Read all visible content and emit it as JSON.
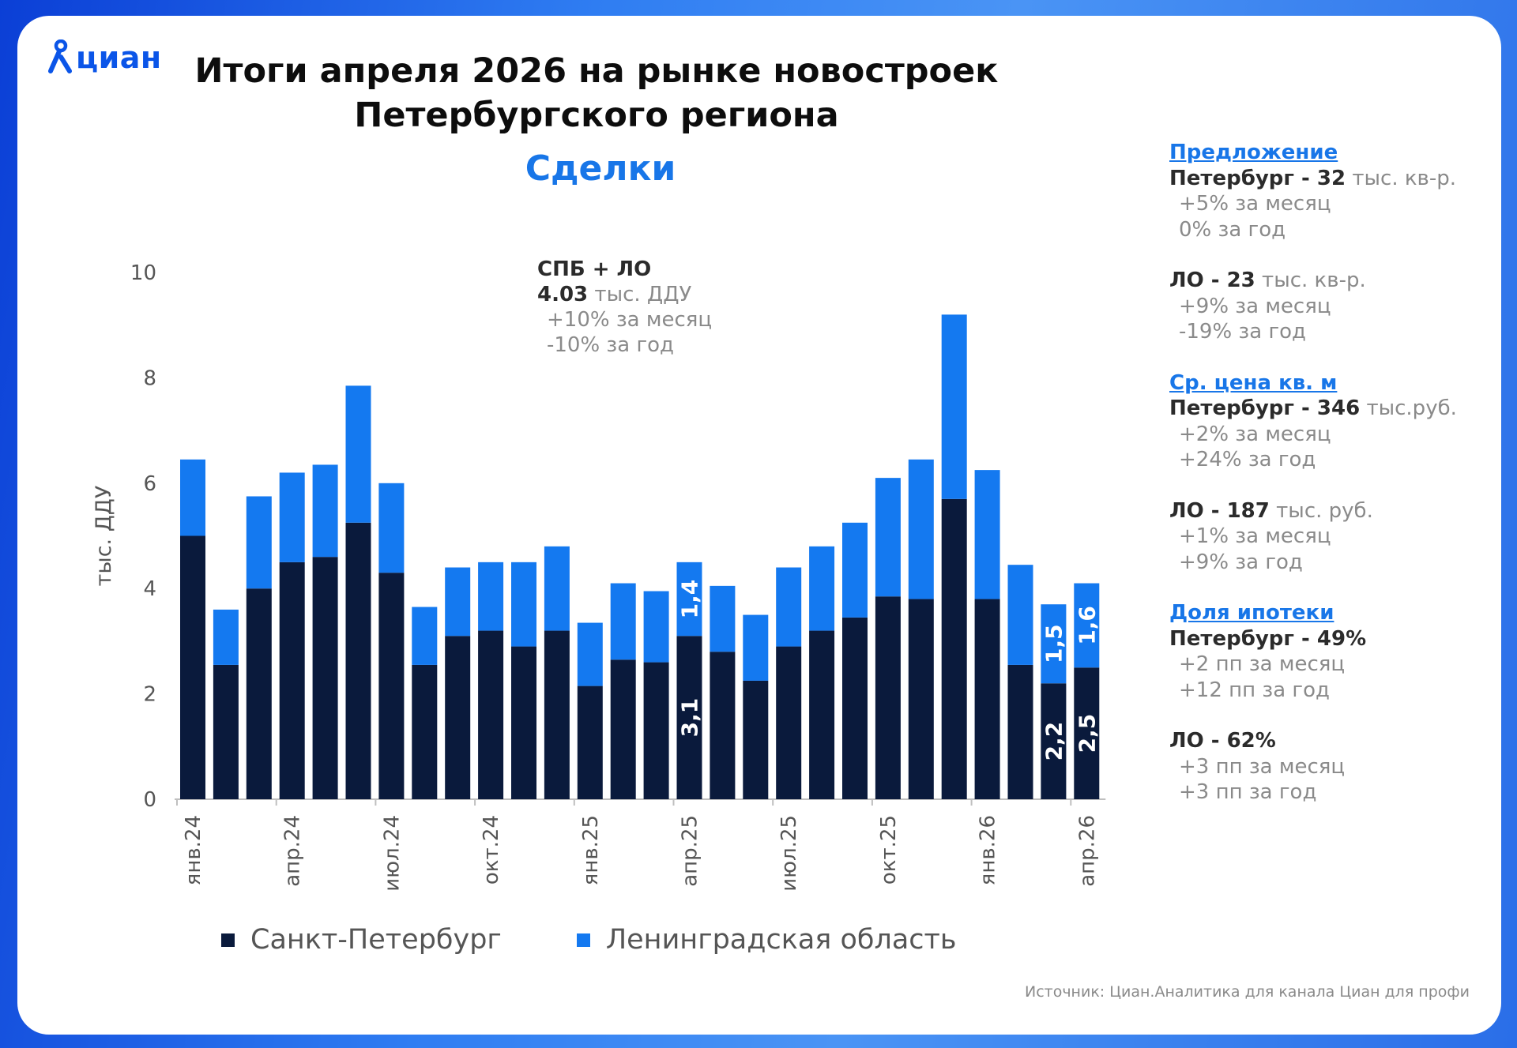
{
  "brand": {
    "logo_text": "циан"
  },
  "title_line1": "Итоги апреля 2026 на рынке новостроек",
  "title_line2": "Петербургского региона",
  "subtitle": "Сделки",
  "annotation": {
    "line1": "СПБ + ЛО",
    "line2_bold": "4.03",
    "line2_unit": " тыс. ДДУ",
    "line3": "+10% за месяц",
    "line4": "-10% за год"
  },
  "sidebar": {
    "offer_header": "Предложение",
    "offer_spb_bold": "Петербург - 32",
    "offer_spb_unit": " тыс. кв-р.",
    "offer_spb_m": "+5% за месяц",
    "offer_spb_y": "0% за год",
    "offer_lo_bold": "ЛО - 23",
    "offer_lo_unit": " тыс. кв-р.",
    "offer_lo_m": "+9% за месяц",
    "offer_lo_y": "-19% за год",
    "price_header": "Ср. цена кв. м",
    "price_spb_bold": "Петербург - 346",
    "price_spb_unit": " тыс.руб.",
    "price_spb_m": "+2% за месяц",
    "price_spb_y": "+24% за год",
    "price_lo_bold": "ЛО - 187",
    "price_lo_unit": " тыс. руб.",
    "price_lo_m": "+1% за месяц",
    "price_lo_y": "+9% за год",
    "mortgage_header": "Доля ипотеки",
    "mortgage_spb_bold": "Петербург - 49%",
    "mortgage_spb_m": "+2 пп за месяц",
    "mortgage_spb_y": "+12 пп за год",
    "mortgage_lo_bold": "ЛО - 62%",
    "mortgage_lo_m": "+3 пп за месяц",
    "mortgage_lo_y": "+3 пп за год"
  },
  "source": "Источник: Циан.Аналитика для канала Циан для профи",
  "colors": {
    "spb": "#0a1a3c",
    "lo": "#1479f0",
    "accent": "#1876e8",
    "brand": "#0b55e8"
  },
  "chart_data": {
    "type": "bar",
    "stacked": true,
    "ylabel": "тыс. ДДУ",
    "ylim": [
      0,
      10
    ],
    "yticks": [
      "0",
      "2",
      "4",
      "6",
      "8",
      "10"
    ],
    "categories": [
      "янв.24",
      "фев.24",
      "мар.24",
      "апр.24",
      "май.24",
      "июн.24",
      "июл.24",
      "авг.24",
      "сен.24",
      "окт.24",
      "ноя.24",
      "дек.24",
      "янв.25",
      "фев.25",
      "мар.25",
      "апр.25",
      "май.25",
      "июн.25",
      "июл.25",
      "авг.25",
      "сен.25",
      "окт.25",
      "ноя.25",
      "дек.25",
      "янв.26",
      "фев.26",
      "мар.26",
      "апр.26"
    ],
    "tick_labels": [
      "янв.24",
      "апр.24",
      "июл.24",
      "окт.24",
      "янв.25",
      "апр.25",
      "июл.25",
      "окт.25",
      "янв.26",
      "апр.26"
    ],
    "series": [
      {
        "name": "Санкт-Петербург",
        "values": [
          5.0,
          2.55,
          4.0,
          4.5,
          4.6,
          5.25,
          4.3,
          2.55,
          3.1,
          3.2,
          2.9,
          3.2,
          2.15,
          2.65,
          2.6,
          3.1,
          2.8,
          2.25,
          2.9,
          3.2,
          3.45,
          3.85,
          3.8,
          5.7,
          3.8,
          2.55,
          2.2,
          2.5
        ]
      },
      {
        "name": "Ленинградская область",
        "values": [
          1.45,
          1.05,
          1.75,
          1.7,
          1.75,
          2.6,
          1.7,
          1.1,
          1.3,
          1.3,
          1.6,
          1.6,
          1.2,
          1.45,
          1.35,
          1.4,
          1.25,
          1.25,
          1.5,
          1.6,
          1.8,
          2.25,
          2.65,
          3.5,
          2.45,
          1.9,
          1.5,
          1.6
        ]
      }
    ],
    "data_labels": [
      {
        "index": 15,
        "series": 0,
        "text": "3,1"
      },
      {
        "index": 15,
        "series": 1,
        "text": "1,4"
      },
      {
        "index": 26,
        "series": 0,
        "text": "2,2"
      },
      {
        "index": 26,
        "series": 1,
        "text": "1,5"
      },
      {
        "index": 27,
        "series": 0,
        "text": "2,5"
      },
      {
        "index": 27,
        "series": 1,
        "text": "1,6"
      }
    ],
    "legend_position": "bottom",
    "grid": false
  }
}
